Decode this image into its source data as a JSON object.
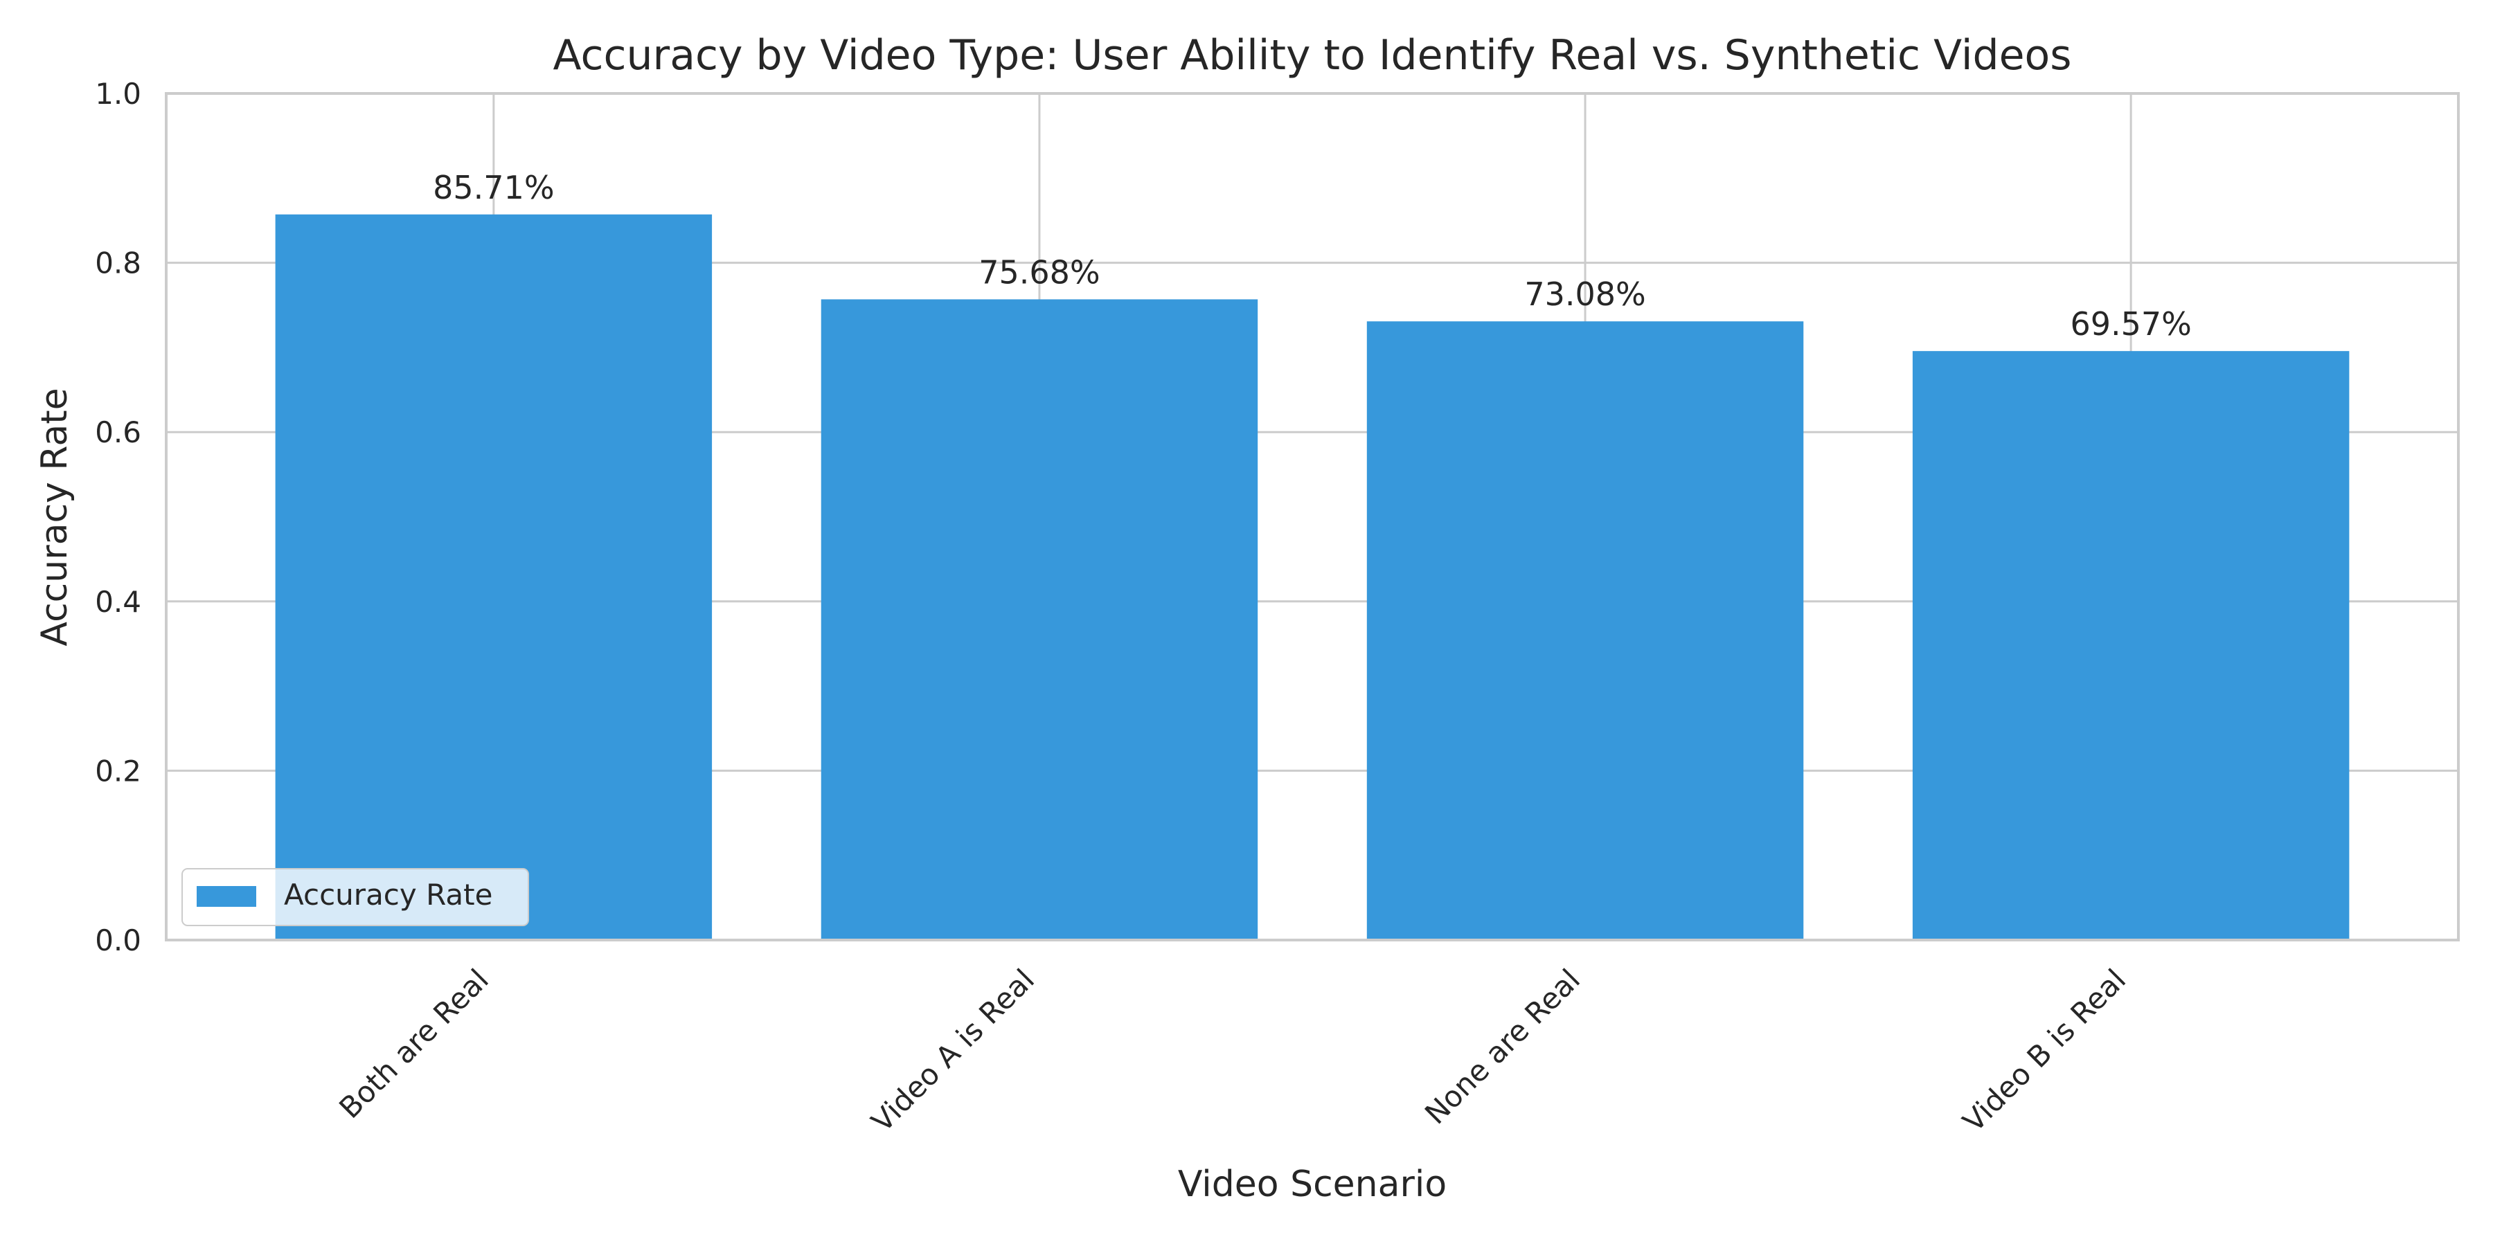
{
  "chart_data": {
    "type": "bar",
    "title": "Accuracy by Video Type: User Ability to Identify Real vs. Synthetic Videos",
    "xlabel": "Video Scenario",
    "ylabel": "Accuracy Rate",
    "categories": [
      "Both are Real",
      "Video A is Real",
      "None are Real",
      "Video B is Real"
    ],
    "series": [
      {
        "name": "Accuracy Rate",
        "values": [
          0.8571,
          0.7568,
          0.7308,
          0.6957
        ],
        "labels": [
          "85.71%",
          "75.68%",
          "73.08%",
          "69.57%"
        ]
      }
    ],
    "ylim": [
      0,
      1.0
    ],
    "yticks": [
      0.0,
      0.2,
      0.4,
      0.6,
      0.8,
      1.0
    ],
    "ytick_labels": [
      "0.0",
      "0.2",
      "0.4",
      "0.6",
      "0.8",
      "1.0"
    ],
    "grid": true,
    "legend_position": "lower-left",
    "colors": {
      "bar": "#3798db",
      "grid": "#cccccc",
      "axes_edge": "#cccccc",
      "text": "#262626",
      "background": "#ffffff"
    }
  }
}
